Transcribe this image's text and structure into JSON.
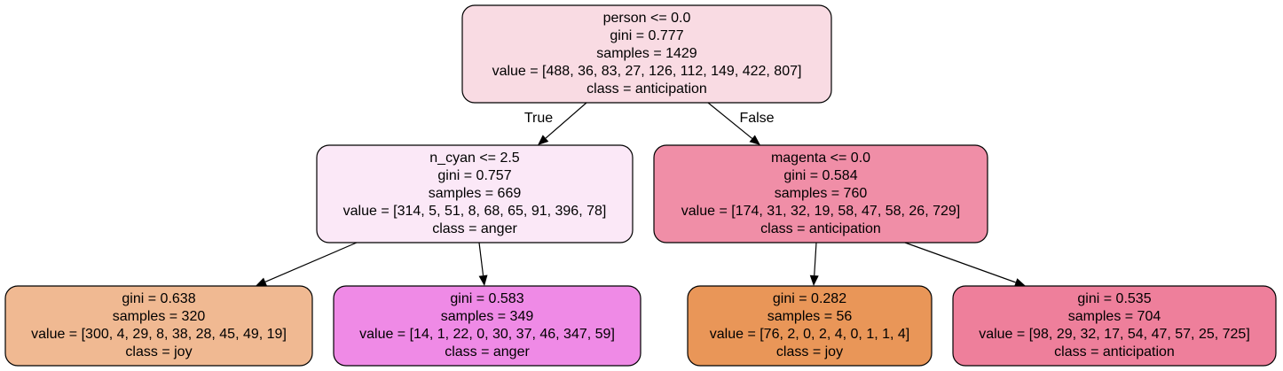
{
  "tree": {
    "nodes": [
      {
        "id": "root",
        "fill": "#f9dbe3",
        "lines": [
          "person <= 0.0",
          "gini = 0.777",
          "samples = 1429",
          "value = [488, 36, 83, 27, 126, 112, 149, 422, 807]",
          "class = anticipation"
        ]
      },
      {
        "id": "left",
        "fill": "#fbe8f7",
        "lines": [
          "n_cyan <= 2.5",
          "gini = 0.757",
          "samples = 669",
          "value = [314, 5, 51, 8, 68, 65, 91, 396, 78]",
          "class = anger"
        ]
      },
      {
        "id": "right",
        "fill": "#f08ea7",
        "lines": [
          "magenta <= 0.0",
          "gini = 0.584",
          "samples = 760",
          "value = [174, 31, 32, 19, 58, 47, 58, 26, 729]",
          "class = anticipation"
        ]
      },
      {
        "id": "left-left",
        "fill": "#f0b992",
        "lines": [
          "gini = 0.638",
          "samples = 320",
          "value = [300, 4, 29, 8, 38, 28, 45, 49, 19]",
          "class = joy"
        ]
      },
      {
        "id": "left-right",
        "fill": "#ef8ae6",
        "lines": [
          "gini = 0.583",
          "samples = 349",
          "value = [14, 1, 22, 0, 30, 37, 46, 347, 59]",
          "class = anger"
        ]
      },
      {
        "id": "right-left",
        "fill": "#e99658",
        "lines": [
          "gini = 0.282",
          "samples = 56",
          "value = [76, 2, 0, 2, 4, 0, 1, 1, 4]",
          "class = joy"
        ]
      },
      {
        "id": "right-right",
        "fill": "#ee7f9b",
        "lines": [
          "gini = 0.535",
          "samples = 704",
          "value = [98, 29, 32, 17, 54, 47, 57, 25, 725]",
          "class = anticipation"
        ]
      }
    ],
    "edges": [
      {
        "from": "root",
        "to": "left",
        "label": "True"
      },
      {
        "from": "root",
        "to": "right",
        "label": "False"
      },
      {
        "from": "left",
        "to": "left-left",
        "label": ""
      },
      {
        "from": "left",
        "to": "left-right",
        "label": ""
      },
      {
        "from": "right",
        "to": "right-left",
        "label": ""
      },
      {
        "from": "right",
        "to": "right-right",
        "label": ""
      }
    ]
  }
}
